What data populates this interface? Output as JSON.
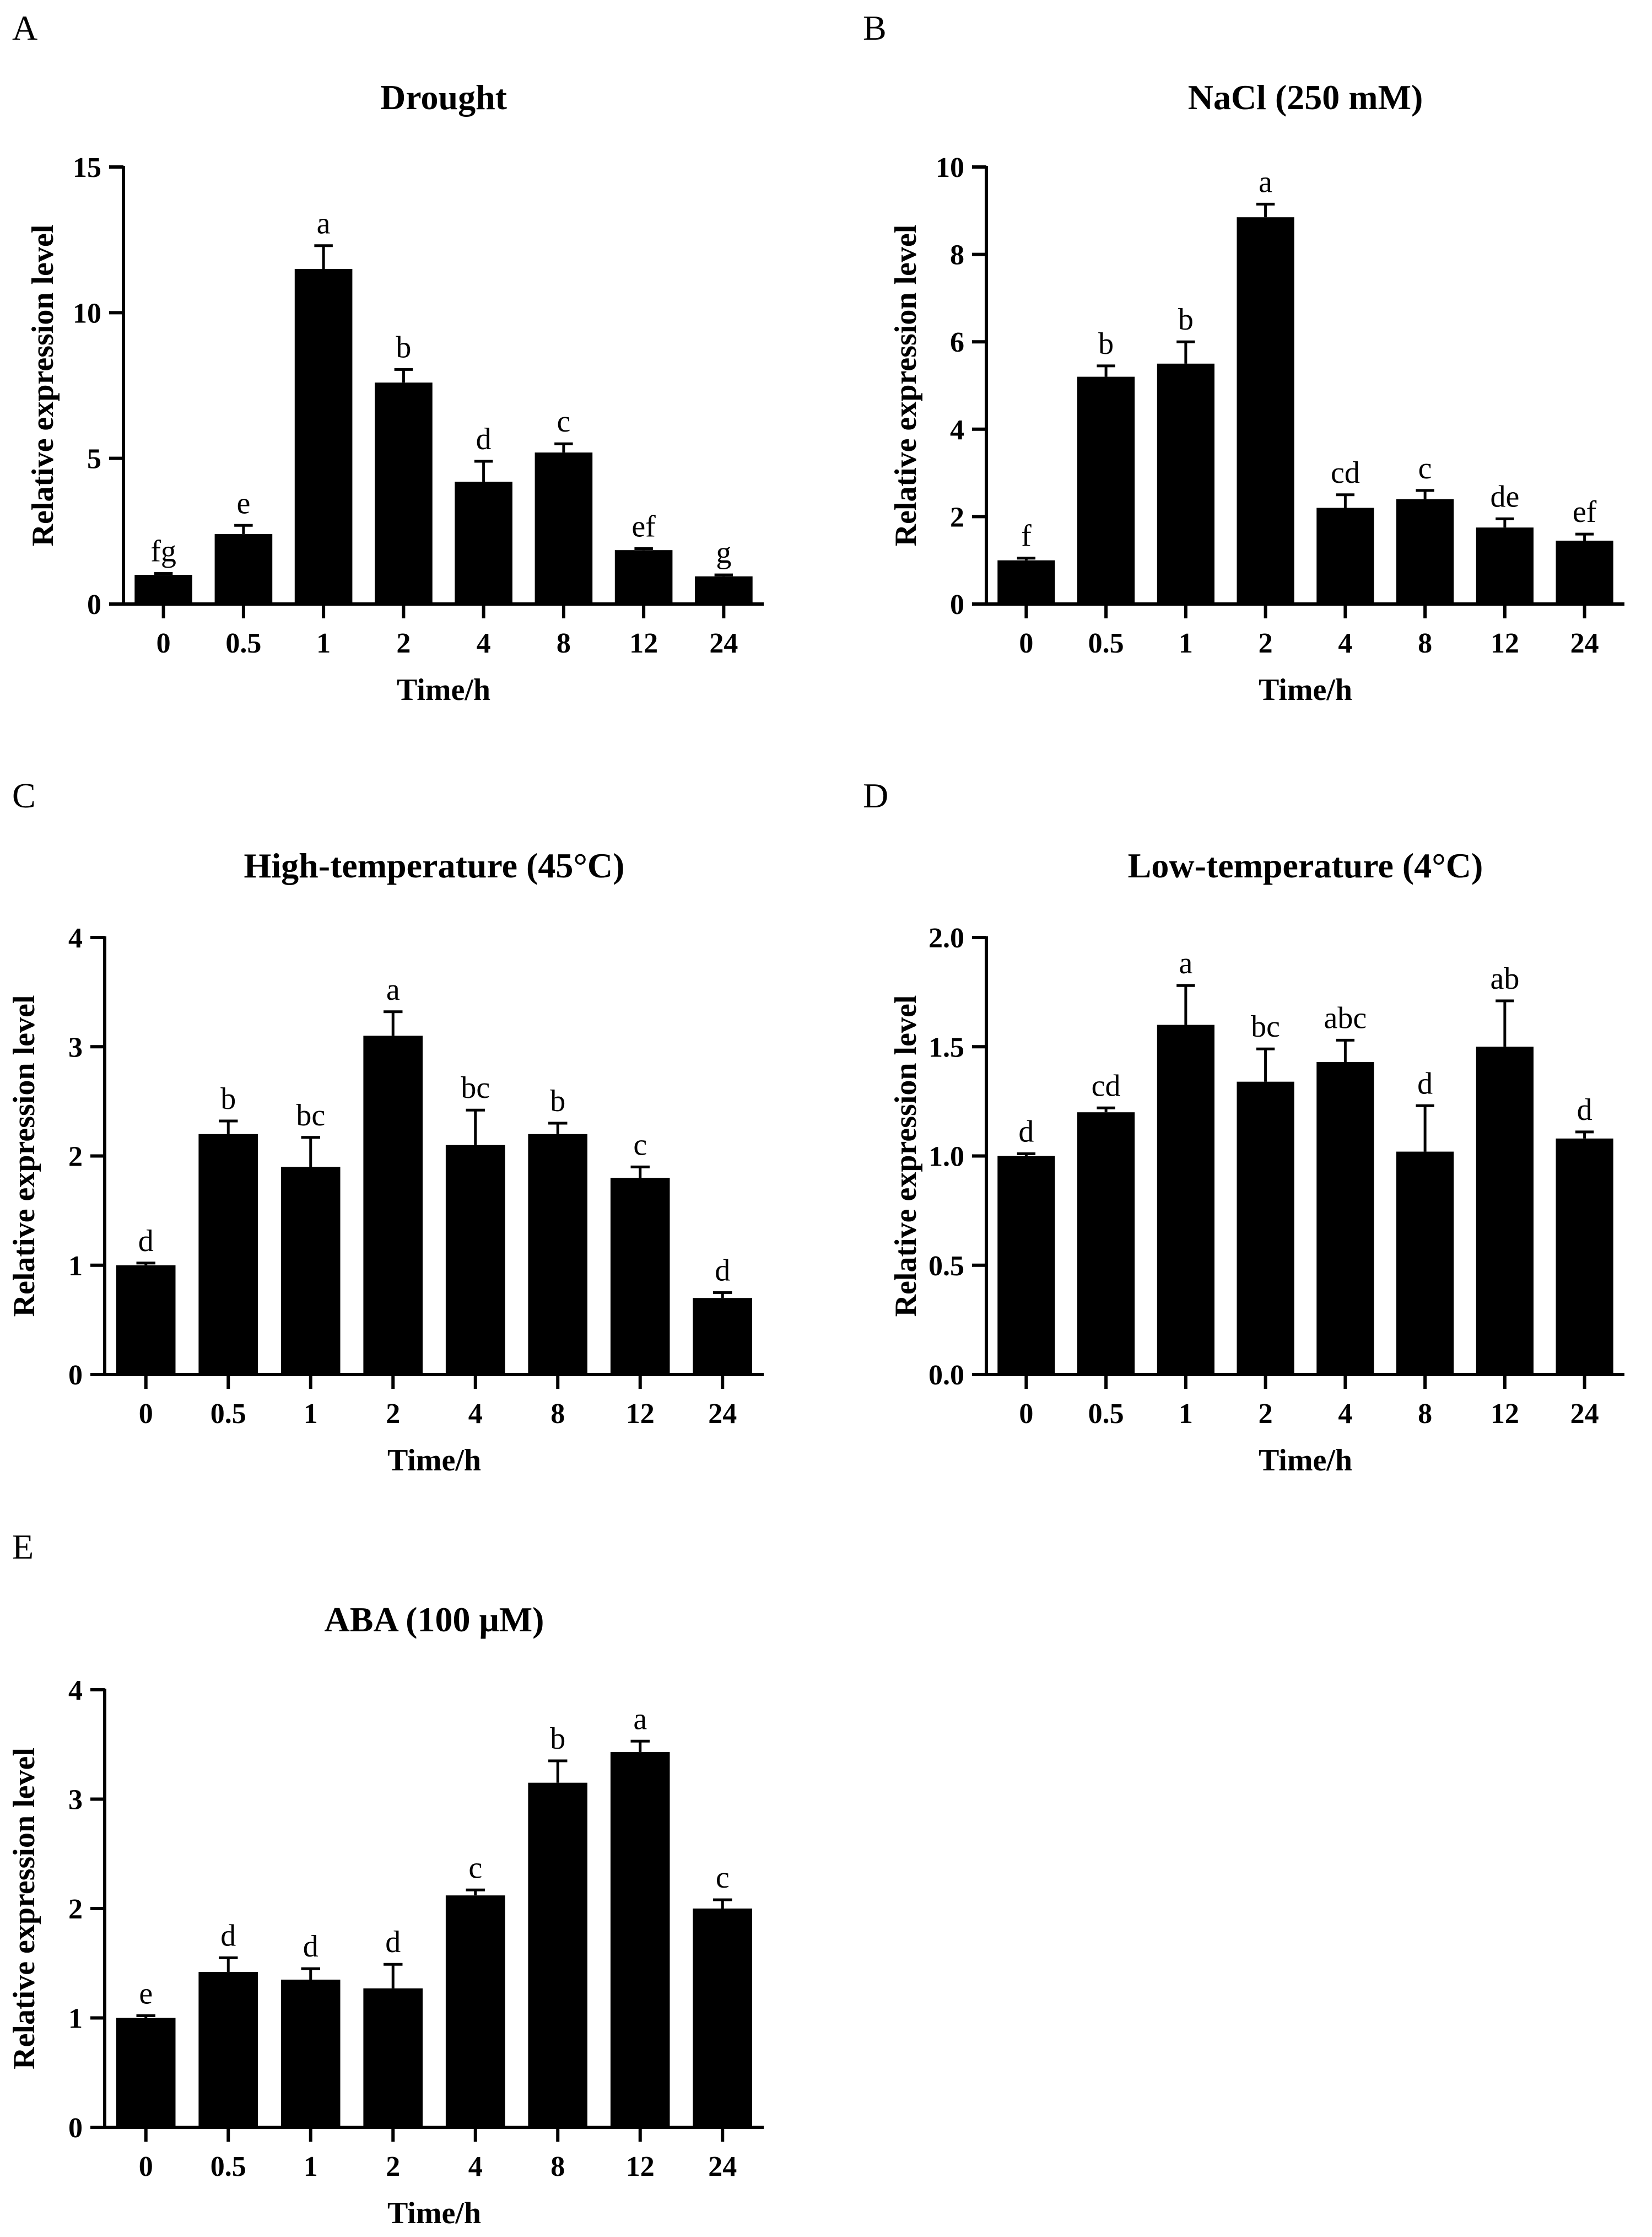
{
  "chart_data": [
    {
      "panel": "A",
      "type": "bar",
      "title": "Drought",
      "xlabel": "Time/h",
      "ylabel": "Relative expression level",
      "categories": [
        "0",
        "0.5",
        "1",
        "2",
        "4",
        "8",
        "12",
        "24"
      ],
      "values": [
        1.0,
        2.4,
        11.5,
        7.6,
        4.2,
        5.2,
        1.85,
        0.95
      ],
      "errors": [
        0.05,
        0.3,
        0.8,
        0.45,
        0.7,
        0.3,
        0.05,
        0.05
      ],
      "significance": [
        "fg",
        "e",
        "a",
        "b",
        "d",
        "c",
        "ef",
        "g"
      ],
      "ylim": [
        0,
        15
      ],
      "yticks": [
        0,
        5,
        10,
        15
      ],
      "ytick_labels": [
        "0",
        "5",
        "10",
        "15"
      ]
    },
    {
      "panel": "B",
      "type": "bar",
      "title": "NaCl (250 mM)",
      "xlabel": "Time/h",
      "ylabel": "Relative expression level",
      "categories": [
        "0",
        "0.5",
        "1",
        "2",
        "4",
        "8",
        "12",
        "24"
      ],
      "values": [
        1.0,
        5.2,
        5.5,
        8.85,
        2.2,
        2.4,
        1.75,
        1.45
      ],
      "errors": [
        0.05,
        0.25,
        0.5,
        0.3,
        0.3,
        0.2,
        0.2,
        0.15
      ],
      "significance": [
        "f",
        "b",
        "b",
        "a",
        "cd",
        "c",
        "de",
        "ef"
      ],
      "ylim": [
        0,
        10
      ],
      "yticks": [
        0,
        2,
        4,
        6,
        8,
        10
      ],
      "ytick_labels": [
        "0",
        "2",
        "4",
        "6",
        "8",
        "10"
      ]
    },
    {
      "panel": "C",
      "type": "bar",
      "title": "High-temperature (45°C)",
      "xlabel": "Time/h",
      "ylabel": "Relative expression level",
      "categories": [
        "0",
        "0.5",
        "1",
        "2",
        "4",
        "8",
        "12",
        "24"
      ],
      "values": [
        1.0,
        2.2,
        1.9,
        3.1,
        2.1,
        2.2,
        1.8,
        0.7
      ],
      "errors": [
        0.02,
        0.12,
        0.27,
        0.22,
        0.32,
        0.1,
        0.1,
        0.05
      ],
      "significance": [
        "d",
        "b",
        "bc",
        "a",
        "bc",
        "b",
        "c",
        "d"
      ],
      "ylim": [
        0,
        4
      ],
      "yticks": [
        0,
        1,
        2,
        3,
        4
      ],
      "ytick_labels": [
        "0",
        "1",
        "2",
        "3",
        "4"
      ]
    },
    {
      "panel": "D",
      "type": "bar",
      "title": "Low-temperature (4°C)",
      "xlabel": "Time/h",
      "ylabel": "Relative expression level",
      "categories": [
        "0",
        "0.5",
        "1",
        "2",
        "4",
        "8",
        "12",
        "24"
      ],
      "values": [
        1.0,
        1.2,
        1.6,
        1.34,
        1.43,
        1.02,
        1.5,
        1.08
      ],
      "errors": [
        0.01,
        0.02,
        0.18,
        0.15,
        0.1,
        0.21,
        0.21,
        0.03
      ],
      "significance": [
        "d",
        "cd",
        "a",
        "bc",
        "abc",
        "d",
        "ab",
        "d"
      ],
      "ylim": [
        0,
        2
      ],
      "yticks": [
        0,
        0.5,
        1,
        1.5,
        2
      ],
      "ytick_labels": [
        "0.0",
        "0.5",
        "1.0",
        "1.5",
        "2.0"
      ]
    },
    {
      "panel": "E",
      "type": "bar",
      "title": "ABA (100 μM)",
      "xlabel": "Time/h",
      "ylabel": "Relative expression level",
      "categories": [
        "0",
        "0.5",
        "1",
        "2",
        "4",
        "8",
        "12",
        "24"
      ],
      "values": [
        1.0,
        1.42,
        1.35,
        1.27,
        2.12,
        3.15,
        3.43,
        2.0
      ],
      "errors": [
        0.02,
        0.13,
        0.1,
        0.22,
        0.05,
        0.2,
        0.1,
        0.08
      ],
      "significance": [
        "e",
        "d",
        "d",
        "d",
        "c",
        "b",
        "a",
        "c"
      ],
      "ylim": [
        0,
        4
      ],
      "yticks": [
        0,
        1,
        2,
        3,
        4
      ],
      "ytick_labels": [
        "0",
        "1",
        "2",
        "3",
        "4"
      ]
    }
  ],
  "colors": {
    "bar": "#000000",
    "axis": "#000000",
    "background": "#ffffff"
  }
}
